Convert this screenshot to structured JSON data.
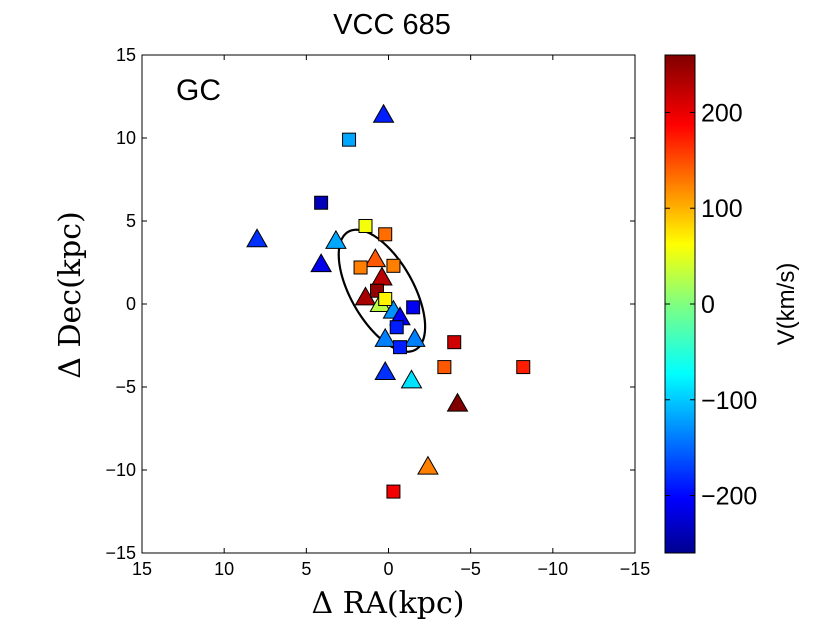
{
  "chart_data": {
    "type": "scatter",
    "title": "VCC 685",
    "annotation": "GC",
    "xlabel": "Δ RA(kpc)",
    "ylabel": "Δ Dec(kpc)",
    "xlim": [
      15,
      -15
    ],
    "ylim": [
      -15,
      15
    ],
    "xticks": [
      15,
      10,
      5,
      0,
      -5,
      -10,
      -15
    ],
    "yticks": [
      -15,
      -10,
      -5,
      0,
      5,
      10,
      15
    ],
    "xtick_labels": [
      "15",
      "10",
      "5",
      "0",
      "−5",
      "−10",
      "−15"
    ],
    "ytick_labels": [
      "−15",
      "−10",
      "−5",
      "0",
      "5",
      "10",
      "15"
    ],
    "grid": false,
    "ellipse": {
      "center": [
        0.4,
        0.8
      ],
      "semi_major": 4.1,
      "semi_minor": 1.9,
      "pa_deg": 30
    },
    "colorbar": {
      "label": "V(km/s)",
      "min": -260,
      "max": 260,
      "ticks": [
        -200,
        -100,
        0,
        100,
        200
      ],
      "tick_labels": [
        "−200",
        "−100",
        "0",
        "100",
        "200"
      ],
      "colormap": "jet"
    },
    "series": [
      {
        "marker": "triangle",
        "points": [
          [
            0.3,
            11.4,
            -180
          ],
          [
            8.0,
            3.9,
            -170
          ],
          [
            3.2,
            3.8,
            -110
          ],
          [
            4.1,
            2.4,
            -205
          ],
          [
            0.8,
            2.7,
            150
          ],
          [
            0.4,
            1.6,
            230
          ],
          [
            1.4,
            0.4,
            240
          ],
          [
            0.5,
            0.0,
            30
          ],
          [
            -0.3,
            -0.4,
            -120
          ],
          [
            -0.7,
            -0.8,
            -200
          ],
          [
            0.2,
            -2.1,
            -130
          ],
          [
            -1.6,
            -2.1,
            -130
          ],
          [
            0.2,
            -4.1,
            -170
          ],
          [
            -1.4,
            -4.6,
            -80
          ],
          [
            -4.2,
            -6.0,
            260
          ],
          [
            -2.4,
            -9.8,
            130
          ]
        ]
      },
      {
        "marker": "square",
        "points": [
          [
            2.4,
            9.9,
            -110
          ],
          [
            4.1,
            6.1,
            -230
          ],
          [
            1.4,
            4.7,
            60
          ],
          [
            0.2,
            4.2,
            140
          ],
          [
            1.7,
            2.2,
            130
          ],
          [
            -0.3,
            2.3,
            130
          ],
          [
            0.7,
            0.8,
            250
          ],
          [
            0.2,
            0.3,
            70
          ],
          [
            -1.5,
            -0.2,
            -200
          ],
          [
            -0.5,
            -1.4,
            -180
          ],
          [
            -0.7,
            -2.6,
            -180
          ],
          [
            -4.0,
            -2.3,
            220
          ],
          [
            -3.4,
            -3.8,
            150
          ],
          [
            -8.2,
            -3.8,
            180
          ],
          [
            -0.3,
            -11.3,
            200
          ]
        ]
      }
    ]
  }
}
